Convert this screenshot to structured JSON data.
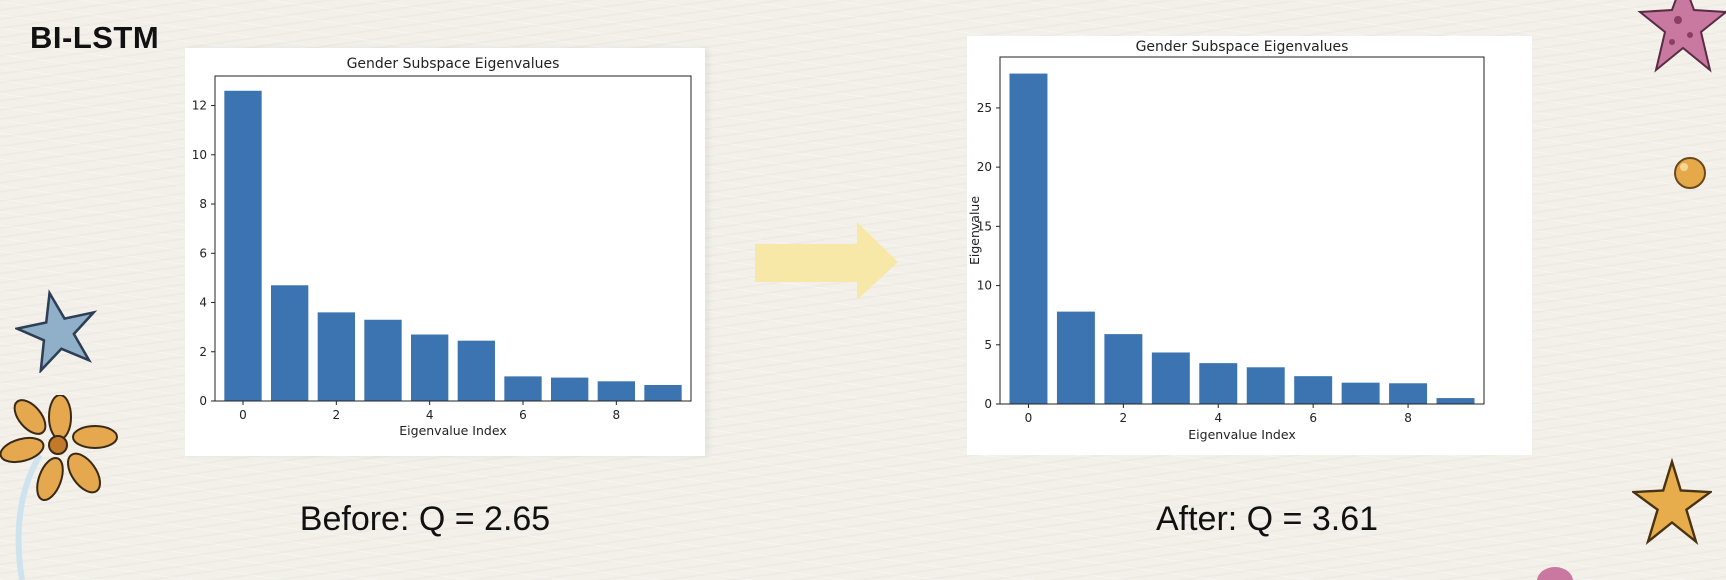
{
  "slide": {
    "title": "BI-LSTM"
  },
  "captions": {
    "before": "Before: Q = 2.65",
    "after": "After: Q = 3.61"
  },
  "colors": {
    "bar": "#3b74b0",
    "arrow": "#f7e8a8"
  },
  "chart_data": [
    {
      "type": "bar",
      "title": "Gender Subspace Eigenvalues",
      "xlabel": "Eigenvalue Index",
      "ylabel": "",
      "categories": [
        0,
        1,
        2,
        3,
        4,
        5,
        6,
        7,
        8,
        9
      ],
      "values": [
        12.6,
        4.7,
        3.6,
        3.3,
        2.7,
        2.45,
        1.0,
        0.95,
        0.8,
        0.65
      ],
      "xticks": [
        0,
        2,
        4,
        6,
        8
      ],
      "yticks": [
        0,
        2,
        4,
        6,
        8,
        10,
        12
      ],
      "ylim": [
        0,
        13.2
      ],
      "xlim": [
        -0.6,
        9.6
      ],
      "grid": false
    },
    {
      "type": "bar",
      "title": "Gender Subspace Eigenvalues",
      "xlabel": "Eigenvalue Index",
      "ylabel": "Eigenvalue",
      "categories": [
        0,
        1,
        2,
        3,
        4,
        5,
        6,
        7,
        8,
        9
      ],
      "values": [
        27.9,
        7.8,
        5.9,
        4.35,
        3.45,
        3.1,
        2.35,
        1.8,
        1.75,
        0.5
      ],
      "xticks": [
        0,
        2,
        4,
        6,
        8
      ],
      "yticks": [
        0,
        5,
        10,
        15,
        20,
        25
      ],
      "ylim": [
        0,
        29.3
      ],
      "xlim": [
        -0.6,
        9.6
      ],
      "grid": false
    }
  ]
}
